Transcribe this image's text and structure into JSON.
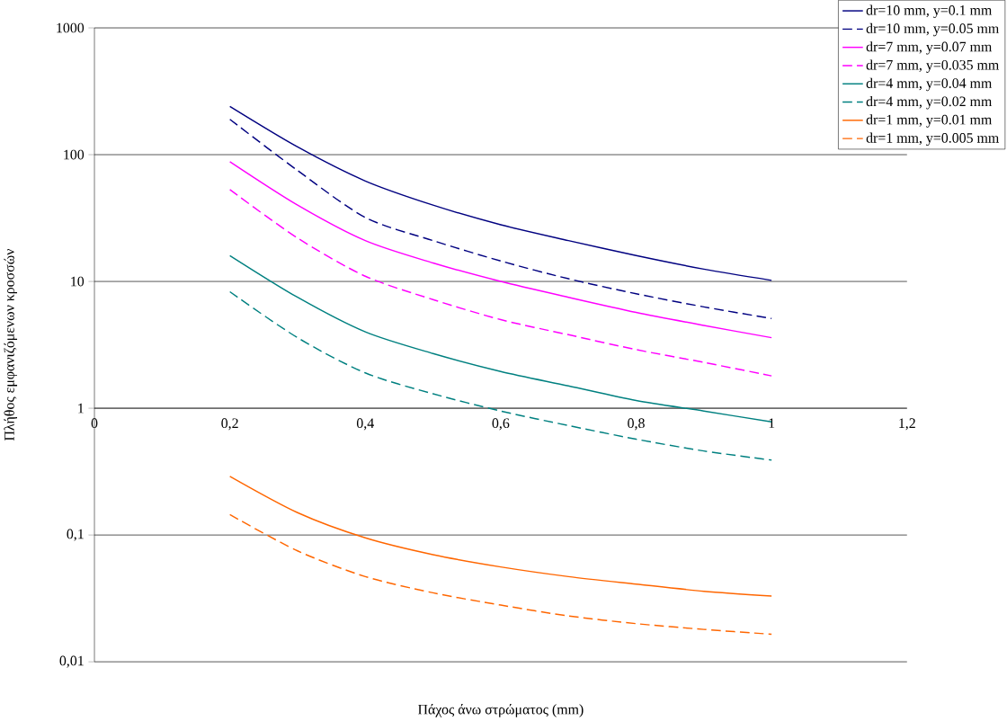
{
  "chart_data": {
    "type": "line",
    "xlabel": "Πάχος άνω στρώματος (mm)",
    "ylabel": "Πλήθος εμφανιζόμενων κροσσών",
    "x": [
      0.2,
      0.3,
      0.4,
      0.5,
      0.6,
      0.7,
      0.8,
      0.9,
      1.0
    ],
    "series": [
      {
        "name": "dr=10 mm, y=0.1 mm",
        "color": "#000080",
        "line_style": "solid",
        "values": [
          240,
          115,
          62,
          40,
          28,
          21,
          16,
          12.5,
          10.2
        ]
      },
      {
        "name": "dr=10 mm, y=0.05 mm",
        "color": "#000080",
        "line_style": "dashed",
        "values": [
          190,
          75,
          32,
          21,
          14.5,
          10.5,
          8,
          6.3,
          5.1
        ]
      },
      {
        "name": "dr=7 mm, y=0.07 mm",
        "color": "#ff00ff",
        "line_style": "solid",
        "values": [
          88,
          40,
          21,
          14,
          10,
          7.5,
          5.7,
          4.5,
          3.6
        ]
      },
      {
        "name": "dr=7 mm, y=0.035 mm",
        "color": "#ff00ff",
        "line_style": "dashed",
        "values": [
          53,
          22,
          11,
          7.2,
          5,
          3.8,
          2.9,
          2.3,
          1.8
        ]
      },
      {
        "name": "dr=4 mm, y=0.04 mm",
        "color": "#008080",
        "line_style": "solid",
        "values": [
          16,
          7.5,
          4,
          2.7,
          1.95,
          1.5,
          1.15,
          0.95,
          0.78
        ]
      },
      {
        "name": "dr=4 mm, y=0.02 mm",
        "color": "#008080",
        "line_style": "dashed",
        "values": [
          8.3,
          3.6,
          1.9,
          1.3,
          0.95,
          0.73,
          0.57,
          0.46,
          0.39
        ]
      },
      {
        "name": "dr=1 mm, y=0.01 mm",
        "color": "#ff6600",
        "line_style": "solid",
        "values": [
          0.29,
          0.15,
          0.095,
          0.07,
          0.056,
          0.047,
          0.041,
          0.036,
          0.033
        ]
      },
      {
        "name": "dr=1 mm, y=0.005 mm",
        "color": "#ff6600",
        "line_style": "dashed",
        "values": [
          0.145,
          0.075,
          0.047,
          0.035,
          0.028,
          0.023,
          0.02,
          0.018,
          0.0165
        ]
      }
    ],
    "log": "y",
    "xlim": [
      0,
      1.2
    ],
    "ylim": [
      0.01,
      1000
    ],
    "xticks": [
      0,
      {
        "value": 0.2,
        "label": "0,2"
      },
      {
        "value": 0.4,
        "label": "0,4"
      },
      {
        "value": 0.6,
        "label": "0,6"
      },
      {
        "value": 0.8,
        "label": "0,8"
      },
      1,
      {
        "value": 1.2,
        "label": "1,2"
      }
    ],
    "yticks": [
      {
        "value": 0.01,
        "label": "0,01"
      },
      {
        "value": 0.1,
        "label": "0,1"
      },
      1,
      10,
      100,
      1000
    ],
    "grid": "y",
    "legend": "top right",
    "marker": "none"
  }
}
